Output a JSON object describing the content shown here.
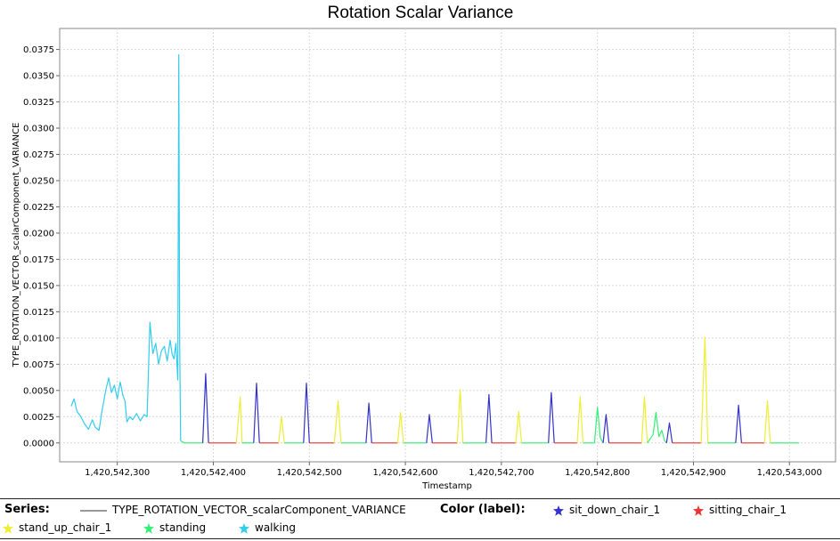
{
  "chart_data": {
    "type": "line",
    "title": "Rotation Scalar Variance",
    "xlabel": "Timestamp",
    "ylabel": "TYPE_ROTATION_VECTOR_scalarComponent_VARIANCE",
    "xlim": [
      1420542240,
      1420543048
    ],
    "ylim": [
      -0.0018,
      0.0395
    ],
    "grid": true,
    "x_ticks": [
      {
        "value": 1420542300,
        "label": "1,420,542,300"
      },
      {
        "value": 1420542400,
        "label": "1,420,542,400"
      },
      {
        "value": 1420542500,
        "label": "1,420,542,500"
      },
      {
        "value": 1420542600,
        "label": "1,420,542,600"
      },
      {
        "value": 1420542700,
        "label": "1,420,542,700"
      },
      {
        "value": 1420542800,
        "label": "1,420,542,800"
      },
      {
        "value": 1420542900,
        "label": "1,420,542,900"
      },
      {
        "value": 1420543000,
        "label": "1,420,543,000"
      }
    ],
    "y_ticks": [
      {
        "value": 0.0,
        "label": "0.0000"
      },
      {
        "value": 0.0025,
        "label": "0.0025"
      },
      {
        "value": 0.005,
        "label": "0.0050"
      },
      {
        "value": 0.0075,
        "label": "0.0075"
      },
      {
        "value": 0.01,
        "label": "0.0100"
      },
      {
        "value": 0.0125,
        "label": "0.0125"
      },
      {
        "value": 0.015,
        "label": "0.0150"
      },
      {
        "value": 0.0175,
        "label": "0.0175"
      },
      {
        "value": 0.02,
        "label": "0.0200"
      },
      {
        "value": 0.0225,
        "label": "0.0225"
      },
      {
        "value": 0.025,
        "label": "0.0250"
      },
      {
        "value": 0.0275,
        "label": "0.0275"
      },
      {
        "value": 0.03,
        "label": "0.0300"
      },
      {
        "value": 0.0325,
        "label": "0.0325"
      },
      {
        "value": 0.035,
        "label": "0.0350"
      },
      {
        "value": 0.0375,
        "label": "0.0375"
      }
    ],
    "series_name": "TYPE_ROTATION_VECTOR_scalarComponent_VARIANCE",
    "label_colors": {
      "sit_down_chair_1": "#3333cc",
      "sitting_chair_1": "#ee3333",
      "stand_up_chair_1": "#eeee33",
      "standing": "#33ee77",
      "walking": "#33ccee"
    },
    "segments": [
      {
        "label": "walking",
        "points": [
          [
            1420542252,
            0.0035
          ],
          [
            1420542255,
            0.0042
          ],
          [
            1420542258,
            0.003
          ],
          [
            1420542262,
            0.0025
          ],
          [
            1420542266,
            0.0018
          ],
          [
            1420542270,
            0.0013
          ],
          [
            1420542274,
            0.0022
          ],
          [
            1420542277,
            0.0015
          ],
          [
            1420542281,
            0.0012
          ],
          [
            1420542284,
            0.003
          ],
          [
            1420542288,
            0.005
          ],
          [
            1420542291,
            0.0062
          ],
          [
            1420542294,
            0.0048
          ],
          [
            1420542297,
            0.0055
          ],
          [
            1420542300,
            0.0042
          ],
          [
            1420542303,
            0.0058
          ],
          [
            1420542306,
            0.0045
          ],
          [
            1420542308,
            0.004
          ],
          [
            1420542310,
            0.002
          ],
          [
            1420542313,
            0.0025
          ],
          [
            1420542316,
            0.0022
          ],
          [
            1420542320,
            0.0028
          ],
          [
            1420542324,
            0.0021
          ],
          [
            1420542328,
            0.0027
          ],
          [
            1420542331,
            0.0025
          ],
          [
            1420542334,
            0.0115
          ],
          [
            1420542337,
            0.0085
          ],
          [
            1420542340,
            0.0095
          ],
          [
            1420542343,
            0.0075
          ],
          [
            1420542346,
            0.0088
          ],
          [
            1420542349,
            0.0092
          ],
          [
            1420542352,
            0.0078
          ],
          [
            1420542355,
            0.0098
          ],
          [
            1420542357,
            0.0085
          ],
          [
            1420542359,
            0.008
          ],
          [
            1420542361,
            0.0095
          ],
          [
            1420542363,
            0.006
          ],
          [
            1420542364,
            0.037
          ],
          [
            1420542365,
            0.0095
          ],
          [
            1420542366,
            0.0002
          ]
        ]
      },
      {
        "label": "standing",
        "points": [
          [
            1420542366,
            0.0002
          ],
          [
            1420542370,
            0.0
          ],
          [
            1420542380,
            0.0
          ],
          [
            1420542389,
            0.0
          ]
        ]
      },
      {
        "label": "sit_down_chair_1",
        "points": [
          [
            1420542389,
            0.0
          ],
          [
            1420542392,
            0.0066
          ],
          [
            1420542395,
            0.0
          ]
        ]
      },
      {
        "label": "sitting_chair_1",
        "points": [
          [
            1420542395,
            0.0
          ],
          [
            1420542424,
            0.0
          ]
        ]
      },
      {
        "label": "stand_up_chair_1",
        "points": [
          [
            1420542424,
            0.0
          ],
          [
            1420542428,
            0.0044
          ],
          [
            1420542430,
            0.0
          ]
        ]
      },
      {
        "label": "standing",
        "points": [
          [
            1420542430,
            0.0
          ],
          [
            1420542442,
            0.0
          ]
        ]
      },
      {
        "label": "sit_down_chair_1",
        "points": [
          [
            1420542442,
            0.0
          ],
          [
            1420542445,
            0.0057
          ],
          [
            1420542448,
            0.0
          ]
        ]
      },
      {
        "label": "sitting_chair_1",
        "points": [
          [
            1420542448,
            0.0
          ],
          [
            1420542468,
            0.0
          ]
        ]
      },
      {
        "label": "stand_up_chair_1",
        "points": [
          [
            1420542468,
            0.0
          ],
          [
            1420542471,
            0.0025
          ],
          [
            1420542474,
            0.0
          ]
        ]
      },
      {
        "label": "standing",
        "points": [
          [
            1420542474,
            0.0
          ],
          [
            1420542494,
            0.0
          ]
        ]
      },
      {
        "label": "sit_down_chair_1",
        "points": [
          [
            1420542494,
            0.0
          ],
          [
            1420542497,
            0.0057
          ],
          [
            1420542500,
            0.0
          ]
        ]
      },
      {
        "label": "sitting_chair_1",
        "points": [
          [
            1420542500,
            0.0
          ],
          [
            1420542526,
            0.0
          ]
        ]
      },
      {
        "label": "stand_up_chair_1",
        "points": [
          [
            1420542526,
            0.0
          ],
          [
            1420542530,
            0.004
          ],
          [
            1420542533,
            0.0
          ]
        ]
      },
      {
        "label": "standing",
        "points": [
          [
            1420542533,
            0.0
          ],
          [
            1420542559,
            0.0
          ]
        ]
      },
      {
        "label": "sit_down_chair_1",
        "points": [
          [
            1420542559,
            0.0
          ],
          [
            1420542562,
            0.0038
          ],
          [
            1420542565,
            0.0
          ]
        ]
      },
      {
        "label": "sitting_chair_1",
        "points": [
          [
            1420542565,
            0.0
          ],
          [
            1420542592,
            0.0
          ]
        ]
      },
      {
        "label": "stand_up_chair_1",
        "points": [
          [
            1420542592,
            0.0
          ],
          [
            1420542595,
            0.0029
          ],
          [
            1420542598,
            0.0
          ]
        ]
      },
      {
        "label": "standing",
        "points": [
          [
            1420542598,
            0.0
          ],
          [
            1420542622,
            0.0
          ]
        ]
      },
      {
        "label": "sit_down_chair_1",
        "points": [
          [
            1420542622,
            0.0
          ],
          [
            1420542625,
            0.0027
          ],
          [
            1420542628,
            0.0
          ]
        ]
      },
      {
        "label": "sitting_chair_1",
        "points": [
          [
            1420542628,
            0.0
          ],
          [
            1420542654,
            0.0
          ]
        ]
      },
      {
        "label": "stand_up_chair_1",
        "points": [
          [
            1420542654,
            0.0
          ],
          [
            1420542657,
            0.0051
          ],
          [
            1420542660,
            0.0
          ]
        ]
      },
      {
        "label": "standing",
        "points": [
          [
            1420542660,
            0.0
          ],
          [
            1420542684,
            0.0
          ]
        ]
      },
      {
        "label": "sit_down_chair_1",
        "points": [
          [
            1420542684,
            0.0
          ],
          [
            1420542687,
            0.0046
          ],
          [
            1420542690,
            0.0
          ]
        ]
      },
      {
        "label": "sitting_chair_1",
        "points": [
          [
            1420542690,
            0.0
          ],
          [
            1420542715,
            0.0
          ]
        ]
      },
      {
        "label": "stand_up_chair_1",
        "points": [
          [
            1420542715,
            0.0
          ],
          [
            1420542718,
            0.003
          ],
          [
            1420542721,
            0.0
          ]
        ]
      },
      {
        "label": "standing",
        "points": [
          [
            1420542721,
            0.0
          ],
          [
            1420542749,
            0.0
          ]
        ]
      },
      {
        "label": "sit_down_chair_1",
        "points": [
          [
            1420542749,
            0.0
          ],
          [
            1420542752,
            0.0048
          ],
          [
            1420542755,
            0.0
          ]
        ]
      },
      {
        "label": "sitting_chair_1",
        "points": [
          [
            1420542755,
            0.0
          ],
          [
            1420542779,
            0.0
          ]
        ]
      },
      {
        "label": "stand_up_chair_1",
        "points": [
          [
            1420542779,
            0.0
          ],
          [
            1420542782,
            0.0044
          ],
          [
            1420542785,
            0.0
          ]
        ]
      },
      {
        "label": "standing",
        "points": [
          [
            1420542785,
            0.0
          ],
          [
            1420542797,
            0.0
          ],
          [
            1420542800,
            0.0034
          ],
          [
            1420542803,
            0.0005
          ],
          [
            1420542806,
            0.0
          ]
        ]
      },
      {
        "label": "sit_down_chair_1",
        "points": [
          [
            1420542806,
            0.0
          ],
          [
            1420542809,
            0.0027
          ],
          [
            1420542812,
            0.0
          ]
        ]
      },
      {
        "label": "sitting_chair_1",
        "points": [
          [
            1420542812,
            0.0
          ],
          [
            1420542846,
            0.0
          ]
        ]
      },
      {
        "label": "stand_up_chair_1",
        "points": [
          [
            1420542846,
            0.0
          ],
          [
            1420542849,
            0.0044
          ],
          [
            1420542852,
            0.0
          ]
        ]
      },
      {
        "label": "standing",
        "points": [
          [
            1420542852,
            0.0
          ],
          [
            1420542858,
            0.0008
          ],
          [
            1420542861,
            0.0029
          ],
          [
            1420542864,
            0.0006
          ],
          [
            1420542867,
            0.0012
          ],
          [
            1420542870,
            0.0002
          ],
          [
            1420542872,
            0.0
          ]
        ]
      },
      {
        "label": "sit_down_chair_1",
        "points": [
          [
            1420542872,
            0.0
          ],
          [
            1420542875,
            0.0019
          ],
          [
            1420542878,
            0.0
          ]
        ]
      },
      {
        "label": "sitting_chair_1",
        "points": [
          [
            1420542878,
            0.0
          ],
          [
            1420542908,
            0.0
          ]
        ]
      },
      {
        "label": "stand_up_chair_1",
        "points": [
          [
            1420542908,
            0.0
          ],
          [
            1420542912,
            0.0101
          ],
          [
            1420542915,
            0.0
          ]
        ]
      },
      {
        "label": "standing",
        "points": [
          [
            1420542915,
            0.0
          ],
          [
            1420542944,
            0.0
          ]
        ]
      },
      {
        "label": "sit_down_chair_1",
        "points": [
          [
            1420542944,
            0.0
          ],
          [
            1420542947,
            0.0036
          ],
          [
            1420542950,
            0.0
          ]
        ]
      },
      {
        "label": "sitting_chair_1",
        "points": [
          [
            1420542950,
            0.0
          ],
          [
            1420542974,
            0.0
          ]
        ]
      },
      {
        "label": "stand_up_chair_1",
        "points": [
          [
            1420542974,
            0.0
          ],
          [
            1420542977,
            0.004
          ],
          [
            1420542980,
            0.0
          ]
        ]
      },
      {
        "label": "standing",
        "points": [
          [
            1420542980,
            0.0
          ],
          [
            1420543010,
            0.0
          ]
        ]
      }
    ]
  },
  "legend": {
    "series_header": "Series:",
    "series_name": "TYPE_ROTATION_VECTOR_scalarComponent_VARIANCE",
    "color_header": "Color (label):",
    "items": [
      {
        "label": "sit_down_chair_1",
        "color": "#3333cc"
      },
      {
        "label": "sitting_chair_1",
        "color": "#ee3333"
      },
      {
        "label": "stand_up_chair_1",
        "color": "#eeee33"
      },
      {
        "label": "standing",
        "color": "#33ee77"
      },
      {
        "label": "walking",
        "color": "#33ccee"
      }
    ]
  }
}
